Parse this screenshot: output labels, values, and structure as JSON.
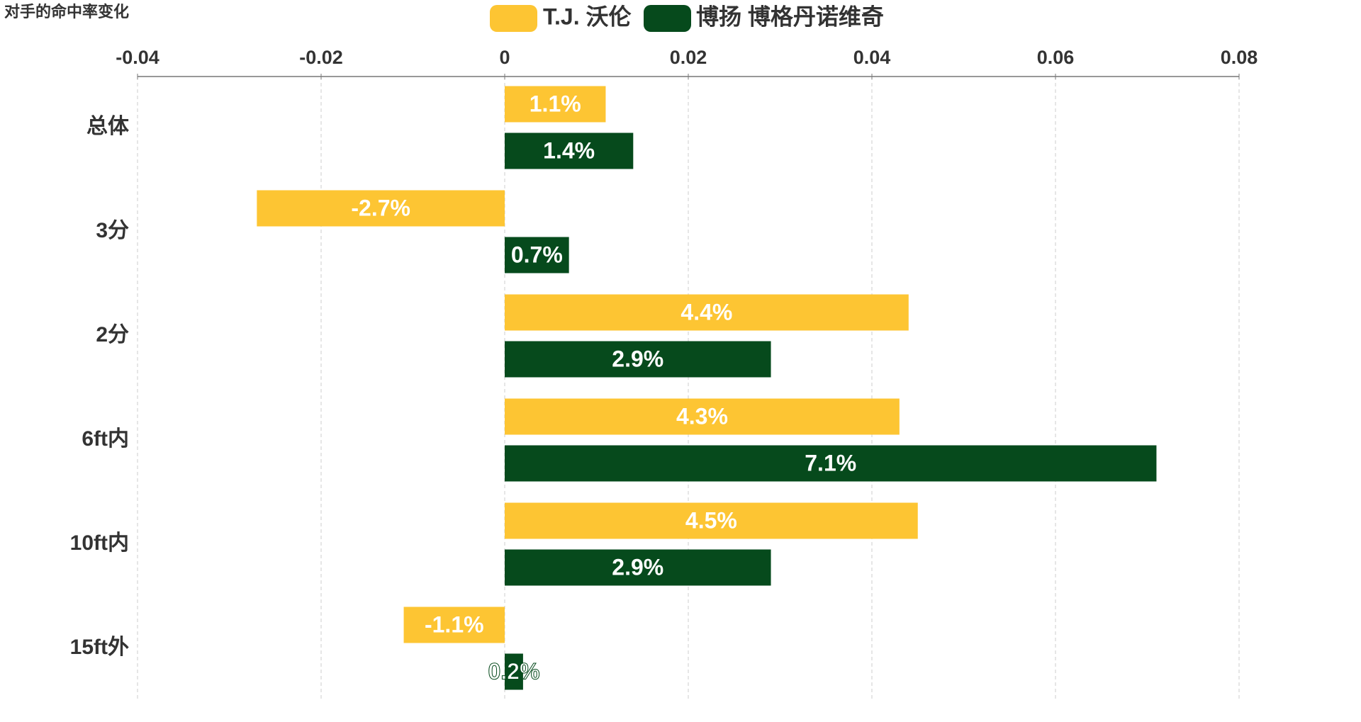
{
  "chart_data": {
    "type": "bar",
    "orientation": "horizontal",
    "title": "对手的命中率变化",
    "categories": [
      "总体",
      "3分",
      "2分",
      "6ft内",
      "10ft内",
      "15ft外"
    ],
    "series": [
      {
        "name": "T.J. 沃伦",
        "color": "#fdc533",
        "values": [
          0.011,
          -0.027,
          0.044,
          0.043,
          0.045,
          -0.011
        ],
        "value_labels": [
          "1.1%",
          "-2.7%",
          "4.4%",
          "4.3%",
          "4.5%",
          "-1.1%"
        ]
      },
      {
        "name": "博扬 博格丹诺维奇",
        "color": "#064a1c",
        "values": [
          0.014,
          0.007,
          0.029,
          0.071,
          0.029,
          0.002
        ],
        "value_labels": [
          "1.4%",
          "0.7%",
          "2.9%",
          "7.1%",
          "2.9%",
          "0.2%"
        ]
      }
    ],
    "xlim": [
      -0.04,
      0.08
    ],
    "xticks": [
      -0.04,
      -0.02,
      0,
      0.02,
      0.04,
      0.06,
      0.08
    ],
    "grid": true
  }
}
